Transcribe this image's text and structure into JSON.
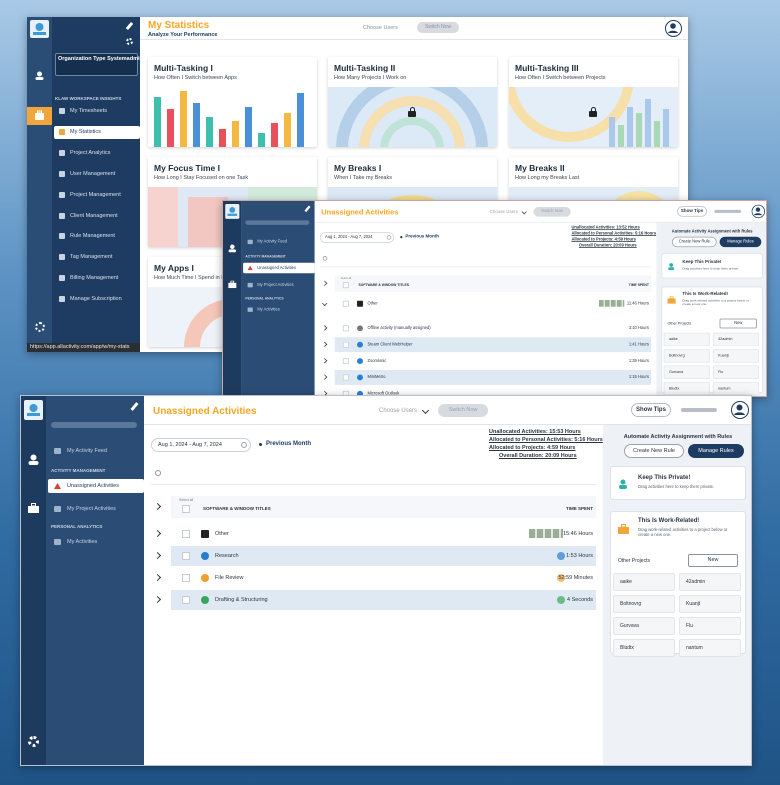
{
  "stats_window": {
    "org_name": "Organization Type Systemadmin",
    "section": "KLAW WORKSPACE INSIGHTS",
    "menu": [
      "My Timesheets",
      "My Statistics",
      "Project Analytics",
      "User Management",
      "Project Management",
      "Client Management",
      "Rule Management",
      "Tag Management",
      "Billing Management",
      "Manage Subscription"
    ],
    "title": "My Statistics",
    "subtitle": "Analyze Your Performance",
    "user_picker": "Choose Users",
    "switch_button": "Switch Now",
    "cards": [
      {
        "title": "Multi-Tasking I",
        "subtitle": "How Often I Switch between Apps"
      },
      {
        "title": "Multi-Tasking II",
        "subtitle": "How Many Projects I Work on"
      },
      {
        "title": "Multi-Tasking III",
        "subtitle": "How Often I Switch between Projects"
      },
      {
        "title": "My Focus Time I",
        "subtitle": "How Long I Stay Focused on one Task"
      },
      {
        "title": "My Breaks I",
        "subtitle": "When I Take my Breaks"
      },
      {
        "title": "My Breaks II",
        "subtitle": "How Long my Breaks Last"
      },
      {
        "title": "My Apps I",
        "subtitle": "How Much Time I Spend in Each"
      }
    ],
    "status_url": "https://app.allactivity.com/app/w/my-stats"
  },
  "activities_small": {
    "menu": [
      "My Activity Feed",
      "Unassigned Activities",
      "My Project Activities",
      "My Activities"
    ],
    "sections": [
      "ACTIVITY MANAGEMENT",
      "PERSONAL ANALYTICS"
    ],
    "title": "Unassigned Activities",
    "user_picker": "Choose Users",
    "switch_button": "Switch Now",
    "tips_button": "Show Tips",
    "date_range": "Aug 1, 2024 - Aug 7, 2024",
    "previous": "Previous Month",
    "summary": [
      "Unallocated Activities: 13:52 Hours",
      "Allocated to Personal Activities: 5:16 Hours",
      "Allocated to Projects: 4:59 Hours",
      "Overall Duration: 20:09 Hours"
    ],
    "select_all": "Select all",
    "column_title": "SOFTWARE & WINDOW TITLES",
    "column_time": "TIME SPENT",
    "rows": [
      {
        "name": "Other",
        "time": "11:46 Hours",
        "icon": "#222222"
      },
      {
        "name": "Offline activity (manually assigned)",
        "time": "3:10 Hours",
        "icon": "#777777"
      },
      {
        "name": "Steam Client WebHelper",
        "time": "1:41 Hours",
        "icon": "#2a7fd4"
      },
      {
        "name": "Zoomlonic",
        "time": "1:39 Hours",
        "icon": "#2a7fd4"
      },
      {
        "name": "MiniMetro",
        "time": "1:15 Hours",
        "icon": "#2a7fd4"
      },
      {
        "name": "Microsoft Outlook",
        "icon": "#2a7fd4"
      }
    ],
    "rules_title": "Automate Activity Assignment with Rules",
    "create_rule": "Create New Rule",
    "manage_rules": "Manage Rules",
    "private_title": "Keep This Private!",
    "private_text": "Drag activities here to keep them private.",
    "work_title": "This Is Work-Related!",
    "work_text": "Drag work-related activities to a project below or create a new one.",
    "projects_label": "Other Projects",
    "new_button": "New",
    "projects": [
      "aaike",
      "42admin",
      "Boltnovrg",
      "Kuanjt",
      "Gurvava",
      "Flu",
      "Bludtx",
      "nantum"
    ]
  },
  "activities_large": {
    "menu": [
      "My Activity Feed",
      "Unassigned Activities",
      "My Project Activities",
      "My Activities"
    ],
    "sections": [
      "ACTIVITY MANAGEMENT",
      "PERSONAL ANALYTICS"
    ],
    "title": "Unassigned Activities",
    "user_picker": "Choose Users",
    "switch_button": "Switch Now",
    "tips_button": "Show Tips",
    "date_range": "Aug 1, 2024 - Aug 7, 2024",
    "previous": "Previous Month",
    "summary": [
      "Unallocated Activities: 15:53 Hours",
      "Allocated to Personal Activities: 5:16 Hours",
      "Allocated to Projects: 4:59 Hours",
      "Overall Duration: 20:09 Hours"
    ],
    "select_all": "Select all",
    "column_title": "SOFTWARE & WINDOW TITLES",
    "column_time": "TIME SPENT",
    "rows": [
      {
        "name": "Other",
        "time": "15:46 Hours",
        "icon": "#222222"
      },
      {
        "name": "Research",
        "time": "1:53 Hours",
        "icon": "#2b7bd0"
      },
      {
        "name": "File Review",
        "time": "52:59 Minutes",
        "icon": "#f0a030"
      },
      {
        "name": "Drafting & Structuring",
        "time": "4 Seconds",
        "icon": "#3aa55a"
      }
    ],
    "rules_title": "Automate Activity Assignment with Rules",
    "create_rule": "Create New Rule",
    "manage_rules": "Manage Rules",
    "private_title": "Keep This Private!",
    "private_text": "Drag activities here to keep them private.",
    "work_title": "This Is Work-Related!",
    "work_text": "Drag work-related activities to a project below or create a new one.",
    "projects_label": "Other Projects",
    "new_button": "New",
    "projects": [
      "aaike",
      "42admin",
      "Boltnovrg",
      "Kuanjt",
      "Gurvava",
      "Flu",
      "Bludtx",
      "nantum"
    ]
  }
}
